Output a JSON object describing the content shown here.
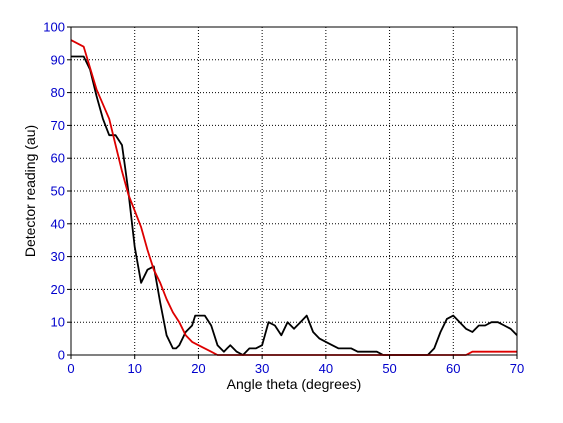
{
  "chart_data": {
    "type": "line",
    "xlabel": "Angle theta (degrees)",
    "ylabel": "Detector reading (au)",
    "xlim": [
      0,
      70
    ],
    "ylim": [
      0,
      100
    ],
    "xticks": [
      0,
      10,
      20,
      30,
      40,
      50,
      60,
      70
    ],
    "yticks": [
      0,
      10,
      20,
      30,
      40,
      50,
      60,
      70,
      80,
      90,
      100
    ],
    "xtick_labels": [
      "0",
      "10",
      "20",
      "30",
      "40",
      "50",
      "60",
      "70"
    ],
    "ytick_labels": [
      "0",
      "10",
      "20",
      "30",
      "40",
      "50",
      "60",
      "70",
      "80",
      "90",
      "100"
    ],
    "grid": "dotted",
    "series": [
      {
        "color": "#000000",
        "x": [
          0,
          1,
          2,
          3,
          4,
          5,
          6,
          7,
          8,
          8.5,
          9,
          10,
          11,
          12,
          13,
          14,
          15,
          16,
          16.5,
          17,
          18,
          19,
          19.5,
          20,
          21,
          22,
          23,
          24,
          24.5,
          25,
          26,
          27,
          28,
          29,
          30,
          31,
          32,
          33,
          34,
          35,
          36,
          37,
          38,
          39,
          40,
          41,
          42,
          43,
          44,
          45,
          46,
          47,
          48,
          49,
          50,
          51,
          52,
          53,
          54,
          55,
          56,
          57,
          58,
          59,
          60,
          61,
          62,
          63,
          64,
          65,
          66,
          67,
          68,
          69,
          70
        ],
        "y": [
          91,
          91,
          91,
          87,
          79,
          72,
          67,
          67,
          64,
          57,
          50,
          33,
          22,
          26,
          27,
          16,
          6,
          2,
          2,
          3,
          7,
          9,
          12,
          12,
          12,
          9,
          3,
          1,
          2,
          3,
          1,
          0,
          2,
          2,
          3,
          10,
          9,
          6,
          10,
          8,
          10,
          12,
          7,
          5,
          4,
          3,
          2,
          2,
          2,
          1,
          1,
          1,
          1,
          0,
          0,
          0,
          0,
          0,
          0,
          0,
          0,
          2,
          7,
          11,
          12,
          10,
          8,
          7,
          9,
          9,
          10,
          10,
          9,
          8,
          6
        ]
      },
      {
        "color": "#dd0000",
        "x": [
          0,
          2,
          4,
          6,
          7,
          8,
          9,
          10,
          11,
          12,
          13,
          14,
          15,
          16,
          17,
          18,
          19,
          20,
          21,
          22,
          23,
          24,
          25,
          26,
          27,
          28,
          30,
          35,
          40,
          45,
          50,
          55,
          60,
          62,
          63,
          65,
          70
        ],
        "y": [
          96,
          94,
          81,
          72,
          64,
          56,
          49,
          44,
          39,
          32,
          26,
          22,
          17,
          13,
          10,
          6,
          4,
          3,
          2,
          1,
          0,
          0,
          0,
          0,
          0,
          0,
          0,
          0,
          0,
          0,
          0,
          0,
          0,
          0,
          1,
          1,
          1
        ]
      }
    ]
  }
}
